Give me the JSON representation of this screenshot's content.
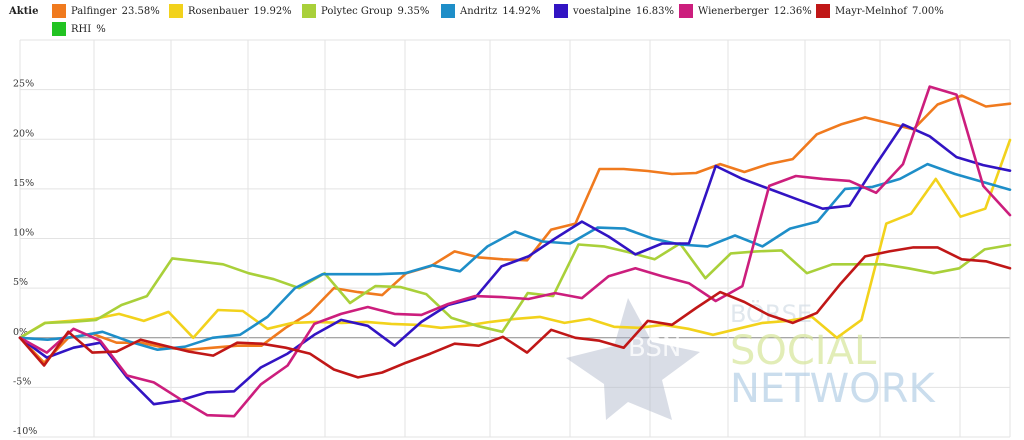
{
  "legend_title": "Aktie",
  "chart_data": {
    "type": "line",
    "ylim": [
      -10,
      30
    ],
    "yticks": [
      "-10%",
      "-5%",
      "0%",
      "5%",
      "10%",
      "15%",
      "20%",
      "25%"
    ],
    "ytick_values": [
      -10,
      -5,
      0,
      5,
      10,
      15,
      20,
      25
    ],
    "grid": true,
    "legend_position": "top",
    "series": [
      {
        "name": "Palfinger",
        "label": "23.58%",
        "color": "#f07a1e",
        "values": [
          0,
          -2.5,
          0,
          0.4,
          -0.5,
          -0.5,
          -1,
          -1.2,
          -1,
          -0.8,
          -0.8,
          1,
          2.5,
          5,
          4.6,
          4.3,
          6.5,
          7.2,
          8.7,
          8.1,
          7.9,
          7.8,
          10.9,
          11.5,
          17,
          17,
          16.8,
          16.5,
          16.6,
          17.5,
          16.7,
          17.5,
          18,
          20.5,
          21.5,
          22.2,
          21.6,
          21,
          23.5,
          24.4,
          23.3,
          23.58
        ]
      },
      {
        "name": "Rosenbauer",
        "label": "19.92%",
        "color": "#f2d21c",
        "values": [
          0,
          1.5,
          1.7,
          1.9,
          2.4,
          1.7,
          2.6,
          0,
          2.8,
          2.7,
          0.9,
          1.5,
          1.6,
          1.5,
          1.6,
          1.4,
          1.3,
          1,
          1.2,
          1.6,
          1.9,
          2.1,
          1.5,
          1.9,
          1.1,
          1,
          1.3,
          0.9,
          0.3,
          0.9,
          1.5,
          1.7,
          2.1,
          0,
          1.8,
          11.5,
          12.5,
          16,
          12.2,
          13,
          19.92
        ]
      },
      {
        "name": "Polytec Group",
        "label": "9.35%",
        "color": "#a9d03a",
        "values": [
          0,
          1.5,
          1.6,
          1.8,
          3.3,
          4.2,
          8,
          7.7,
          7.4,
          6.5,
          5.9,
          5,
          6.5,
          3.5,
          5.2,
          5.1,
          4.4,
          2,
          1.2,
          0.6,
          4.5,
          4.2,
          9.4,
          9.2,
          8.6,
          7.9,
          9.5,
          6,
          8.5,
          8.7,
          8.8,
          6.5,
          7.4,
          7.4,
          7.4,
          7,
          6.5,
          7,
          8.9,
          9.35
        ]
      },
      {
        "name": "Andritz",
        "label": "14.92%",
        "color": "#1e8ec8",
        "values": [
          0,
          -0.2,
          0.1,
          0.6,
          -0.4,
          -1.2,
          -0.9,
          0,
          0.3,
          2.1,
          5,
          6.4,
          6.4,
          6.4,
          6.5,
          7.3,
          6.7,
          9.2,
          10.7,
          9.7,
          9.5,
          11.1,
          11,
          10,
          9.4,
          9.2,
          10.3,
          9.2,
          11,
          11.7,
          15,
          15.2,
          16,
          17.5,
          16.5,
          15.7,
          14.92
        ]
      },
      {
        "name": "voestalpine",
        "label": "16.83%",
        "color": "#3214c3",
        "values": [
          0,
          -2,
          -1,
          -0.5,
          -4,
          -6.7,
          -6.3,
          -5.5,
          -5.4,
          -3,
          -1.6,
          0.3,
          1.8,
          1.2,
          -0.8,
          1.6,
          3.3,
          4,
          7.2,
          8.2,
          10,
          11.7,
          10.2,
          8.4,
          9.5,
          9.5,
          17.3,
          16,
          15,
          14,
          13,
          13.3,
          17.5,
          21.5,
          20.3,
          18.2,
          17.4,
          16.83
        ]
      },
      {
        "name": "Wienerberger",
        "label": "12.36%",
        "color": "#cc1e7d",
        "values": [
          0,
          -1.5,
          0.9,
          -0.3,
          -3.8,
          -4.5,
          -6.2,
          -7.8,
          -7.9,
          -4.7,
          -2.8,
          1.4,
          2.4,
          3.1,
          2.4,
          2.3,
          3.4,
          4.2,
          4.1,
          3.9,
          4.5,
          4,
          6.2,
          7,
          6.2,
          5.5,
          3.7,
          5.2,
          15.3,
          16.3,
          16,
          15.8,
          14.6,
          17.5,
          25.3,
          24.5,
          15.3,
          12.36
        ]
      },
      {
        "name": "Mayr-Melnhof",
        "label": "7.00%",
        "color": "#c01717",
        "values": [
          0,
          -2.8,
          0.6,
          -1.5,
          -1.4,
          -0.2,
          -0.8,
          -1.4,
          -1.8,
          -0.5,
          -0.6,
          -1,
          -1.6,
          -3.2,
          -4,
          -3.5,
          -2.5,
          -1.6,
          -0.6,
          -0.8,
          0.1,
          -1.5,
          0.8,
          0,
          -0.3,
          -1,
          1.7,
          1.3,
          3,
          4.6,
          3.6,
          2.3,
          1.5,
          2.5,
          5.5,
          8.2,
          8.7,
          9.1,
          9.1,
          7.9,
          7.7,
          7.0
        ]
      },
      {
        "name": "RHI",
        "label": "%",
        "color": "#22c322",
        "values": []
      }
    ]
  }
}
